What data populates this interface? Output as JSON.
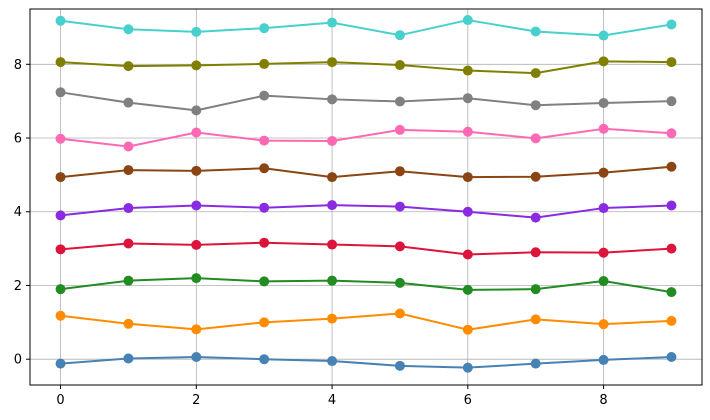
{
  "chart_data": {
    "type": "line",
    "title": "",
    "xlabel": "",
    "ylabel": "",
    "xlim": [
      -0.45,
      9.45
    ],
    "ylim": [
      -0.7,
      9.5
    ],
    "grid": true,
    "x": [
      0,
      1,
      2,
      3,
      4,
      5,
      6,
      7,
      8,
      9
    ],
    "xticks": [
      0,
      2,
      4,
      6,
      8
    ],
    "yticks": [
      0,
      2,
      4,
      6,
      8
    ],
    "series": [
      {
        "color": "#4682b4",
        "values": [
          -0.12,
          0.02,
          0.06,
          0.0,
          -0.05,
          -0.18,
          -0.23,
          -0.12,
          -0.02,
          0.06
        ]
      },
      {
        "color": "#ff8c00",
        "values": [
          1.18,
          0.96,
          0.81,
          1.0,
          1.1,
          1.24,
          0.8,
          1.08,
          0.95,
          1.04
        ]
      },
      {
        "color": "#228b22",
        "values": [
          1.9,
          2.13,
          2.2,
          2.11,
          2.13,
          2.07,
          1.88,
          1.9,
          2.12,
          1.82
        ]
      },
      {
        "color": "#dc143c",
        "values": [
          2.98,
          3.14,
          3.1,
          3.16,
          3.11,
          3.06,
          2.84,
          2.9,
          2.89,
          3.0
        ]
      },
      {
        "color": "#8a2be2",
        "values": [
          3.9,
          4.1,
          4.17,
          4.11,
          4.18,
          4.14,
          4.0,
          3.84,
          4.1,
          4.17
        ]
      },
      {
        "color": "#8b4513",
        "values": [
          4.94,
          5.13,
          5.11,
          5.18,
          4.94,
          5.1,
          4.94,
          4.95,
          5.06,
          5.22
        ]
      },
      {
        "color": "#ff69b4",
        "values": [
          5.98,
          5.77,
          6.15,
          5.93,
          5.92,
          6.22,
          6.17,
          5.99,
          6.25,
          6.13
        ]
      },
      {
        "color": "#808080",
        "values": [
          7.24,
          6.96,
          6.75,
          7.15,
          7.05,
          6.99,
          7.08,
          6.89,
          6.95,
          7.0
        ]
      },
      {
        "color": "#808000",
        "values": [
          8.06,
          7.95,
          7.97,
          8.01,
          8.06,
          7.98,
          7.83,
          7.76,
          8.08,
          8.06
        ]
      },
      {
        "color": "#48d1cc",
        "values": [
          9.18,
          8.95,
          8.88,
          8.98,
          9.13,
          8.79,
          9.2,
          8.89,
          8.78,
          9.08
        ]
      }
    ]
  }
}
